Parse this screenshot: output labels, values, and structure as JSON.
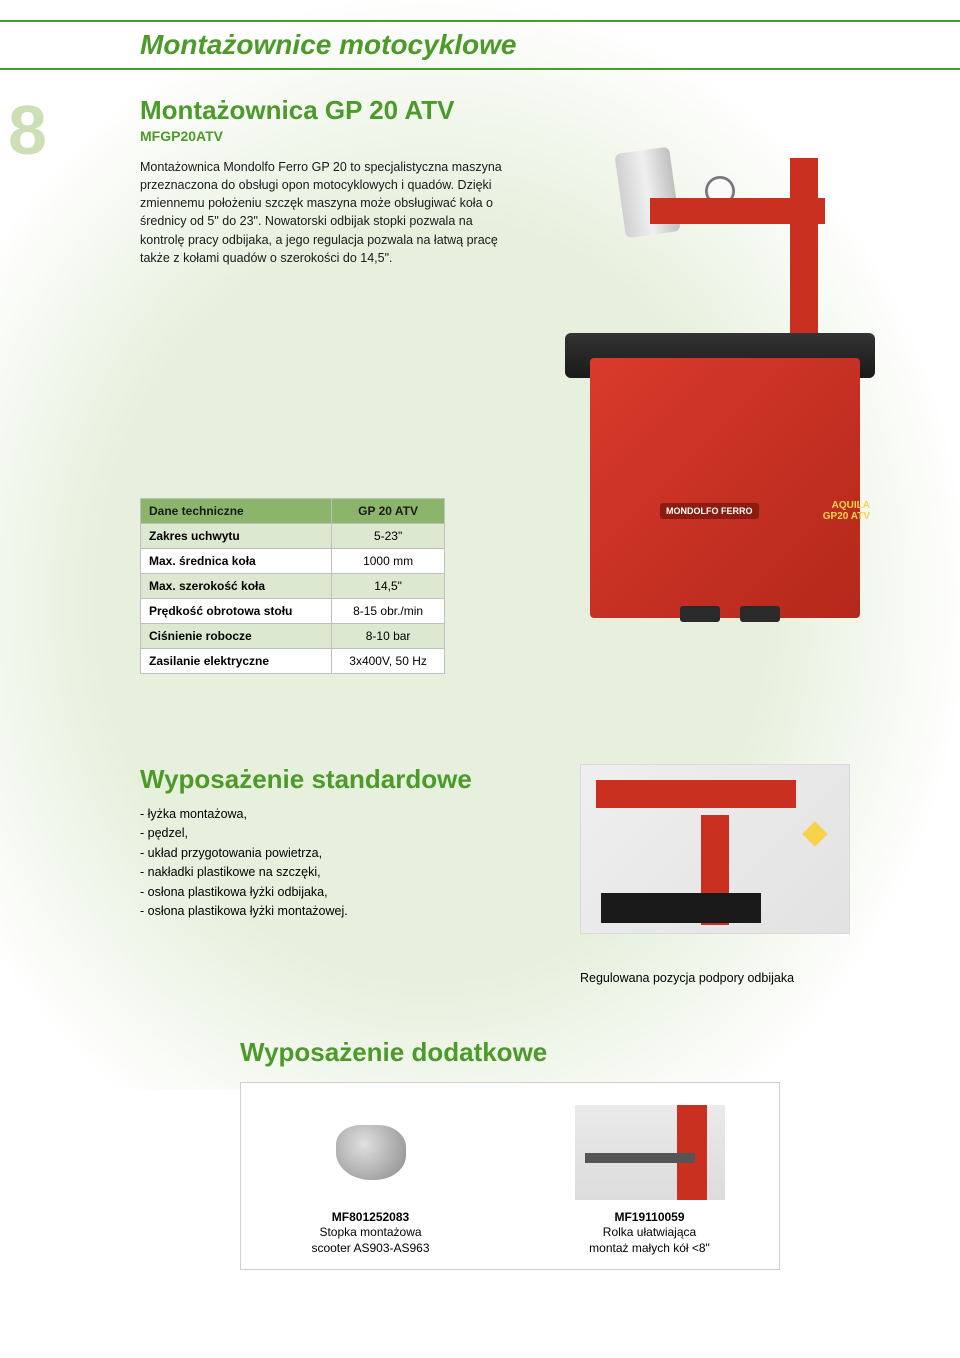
{
  "page_number": "8",
  "header_title": "Montażownice motocyklowe",
  "product": {
    "title": "Montażownica GP 20 ATV",
    "code": "MFGP20ATV",
    "description": "Montażownica Mondolfo Ferro GP 20 to specjalistyczna maszyna przeznaczona do obsługi opon motocyklowych i quadów. Dzięki zmiennemu położeniu szczęk maszyna może obsługiwać koła o średnicy od 5\" do 23\". Nowatorski odbijak stopki pozwala na kontrolę pracy odbijaka, a jego regulacja pozwala na łatwą pracę także z kołami quadów o szerokości do 14,5\".",
    "image_label_brand": "MONDOLFO FERRO",
    "image_label_model": "AQUILA\nGP20 ATV"
  },
  "specs": {
    "header_left": "Dane techniczne",
    "header_right": "GP 20 ATV",
    "rows": [
      {
        "label": "Zakres uchwytu",
        "value": "5-23\""
      },
      {
        "label": "Max. średnica koła",
        "value": "1000 mm"
      },
      {
        "label": "Max. szerokość koła",
        "value": "14,5\""
      },
      {
        "label": "Prędkość obrotowa stołu",
        "value": "8-15 obr./min"
      },
      {
        "label": "Ciśnienie robocze",
        "value": "8-10 bar"
      },
      {
        "label": "Zasilanie elektryczne",
        "value": "3x400V, 50 Hz"
      }
    ]
  },
  "standard_equipment": {
    "title": "Wyposażenie standardowe",
    "items": [
      "- łyżka montażowa,",
      "- pędzel,",
      "- układ przygotowania powietrza,",
      "- nakładki plastikowe na szczęki,",
      "- osłona plastikowa łyżki odbijaka,",
      "- osłona plastikowa łyżki montażowej."
    ],
    "image_caption": "Regulowana pozycja podpory odbijaka"
  },
  "additional_equipment": {
    "title": "Wyposażenie dodatkowe",
    "accessories": [
      {
        "code": "MF801252083",
        "desc_line1": "Stopka montażowa",
        "desc_line2": "scooter AS903-AS963"
      },
      {
        "code": "MF19110059",
        "desc_line1": "Rolka ułatwiająca",
        "desc_line2": "montaż małych kół <8\""
      }
    ]
  },
  "colors": {
    "brand_green": "#4c9a2a",
    "bg_tint": "#e7f0dd",
    "page_number_tint": "#ccdfb7",
    "machine_red": "#c9301f",
    "table_header_bg": "#8ab56a",
    "table_row_alt_bg": "#dce8d0",
    "border_gray": "#bfbfbf"
  },
  "typography": {
    "header_title_pt": 28,
    "section_title_pt": 26,
    "body_pt": 12.5,
    "table_pt": 12,
    "page_number_pt": 70
  }
}
